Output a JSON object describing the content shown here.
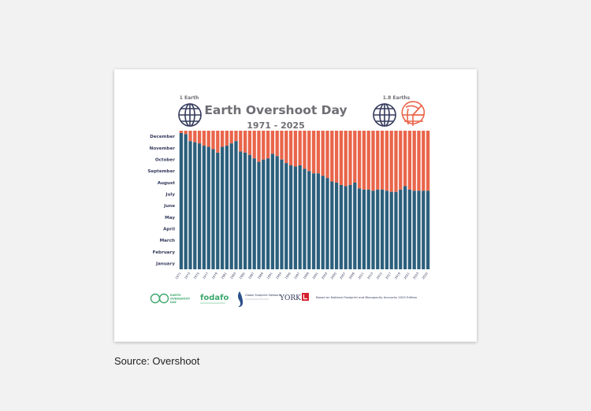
{
  "caption": "Source: Overshoot",
  "chart_data": {
    "type": "bar",
    "title": "Earth Overshoot Day",
    "subtitle": "1971 - 2025",
    "left_globe_label": "1 Earth",
    "right_globe_label": "1.8 Earths",
    "y_tick_labels": [
      "January",
      "February",
      "March",
      "April",
      "May",
      "June",
      "July",
      "August",
      "September",
      "October",
      "November",
      "December"
    ],
    "ylim": [
      0,
      12
    ],
    "x_tick_labels": [
      "1971",
      "1973",
      "1975",
      "1977",
      "1979",
      "1981",
      "1983",
      "1985",
      "1987",
      "1989",
      "1991",
      "1993",
      "1995",
      "1997",
      "1999",
      "2001",
      "2003",
      "2005",
      "2007",
      "2009",
      "2011",
      "2013",
      "2015",
      "2017",
      "2019",
      "2021",
      "2023",
      "2025"
    ],
    "years": [
      1971,
      1972,
      1973,
      1974,
      1975,
      1976,
      1977,
      1978,
      1979,
      1980,
      1981,
      1982,
      1983,
      1984,
      1985,
      1986,
      1987,
      1988,
      1989,
      1990,
      1991,
      1992,
      1993,
      1994,
      1995,
      1996,
      1997,
      1998,
      1999,
      2000,
      2001,
      2002,
      2003,
      2004,
      2005,
      2006,
      2007,
      2008,
      2009,
      2010,
      2011,
      2012,
      2013,
      2014,
      2015,
      2016,
      2017,
      2018,
      2019,
      2020,
      2021,
      2022,
      2023,
      2024,
      2025
    ],
    "series": [
      {
        "color": "#2b5f7c",
        "values": [
          11.8,
          11.7,
          11.1,
          11.0,
          10.9,
          10.7,
          10.6,
          10.4,
          10.1,
          10.6,
          10.7,
          10.9,
          11.1,
          10.2,
          10.1,
          9.9,
          9.6,
          9.3,
          9.5,
          9.6,
          10.0,
          9.8,
          9.5,
          9.2,
          9.0,
          8.9,
          9.0,
          8.7,
          8.5,
          8.3,
          8.3,
          8.1,
          7.9,
          7.6,
          7.5,
          7.3,
          7.2,
          7.3,
          7.5,
          7.0,
          6.9,
          6.9,
          6.8,
          6.9,
          6.9,
          6.8,
          6.7,
          6.7,
          6.9,
          7.2,
          6.9,
          6.8,
          6.8,
          6.8,
          6.8
        ]
      }
    ],
    "overshoot_color": "#e9654a",
    "grid": false,
    "legend": "none"
  },
  "footer": {
    "logo1_line1": "EARTH",
    "logo1_line2": "OVERSHOOT",
    "logo1_line3": "DAY",
    "logo2": "fodafo",
    "logo3_line1": "Global Footprint Network",
    "logo4": "YORK",
    "note": "Based on National Footprint and Biocapacity Accounts 2025 Edition"
  },
  "colors": {
    "accent": "#e9654a",
    "primary": "#2b5f7c",
    "title": "#6e6e74",
    "navy": "#343a5c",
    "green": "#3fa86f"
  }
}
